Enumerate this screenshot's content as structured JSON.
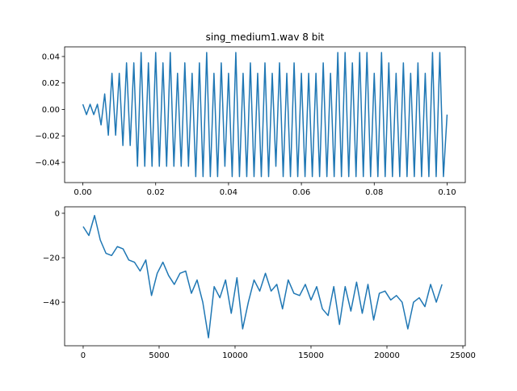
{
  "chart_data": [
    {
      "type": "line",
      "title": "sing_medium1.wav 8 bit",
      "xlim": [
        -0.005,
        0.105
      ],
      "ylim": [
        -0.0553,
        0.0473
      ],
      "xticks": [
        {
          "value": 0,
          "label": "0.00"
        },
        {
          "value": 0.02,
          "label": "0.02"
        },
        {
          "value": 0.04,
          "label": "0.04"
        },
        {
          "value": 0.06,
          "label": "0.06"
        },
        {
          "value": 0.08,
          "label": "0.08"
        },
        {
          "value": 0.1,
          "label": "0.10"
        }
      ],
      "yticks": [
        {
          "value": -0.04,
          "label": "−0.04"
        },
        {
          "value": -0.02,
          "label": "−0.02"
        },
        {
          "value": 0,
          "label": "0.00"
        },
        {
          "value": 0.02,
          "label": "0.02"
        },
        {
          "value": 0.04,
          "label": "0.04"
        }
      ],
      "x": [
        0,
        0.001,
        0.002,
        0.003,
        0.004,
        0.005,
        0.006,
        0.007,
        0.008,
        0.009,
        0.01,
        0.011,
        0.012,
        0.013,
        0.014,
        0.015,
        0.016,
        0.017,
        0.018,
        0.019,
        0.02,
        0.021,
        0.022,
        0.023,
        0.024,
        0.025,
        0.026,
        0.027,
        0.028,
        0.029,
        0.03,
        0.031,
        0.032,
        0.033,
        0.034,
        0.035,
        0.036,
        0.037,
        0.038,
        0.039,
        0.04,
        0.041,
        0.042,
        0.043,
        0.044,
        0.045,
        0.046,
        0.047,
        0.048,
        0.049,
        0.05,
        0.051,
        0.052,
        0.053,
        0.054,
        0.055,
        0.056,
        0.057,
        0.058,
        0.059,
        0.06,
        0.061,
        0.062,
        0.063,
        0.064,
        0.065,
        0.066,
        0.067,
        0.068,
        0.069,
        0.07,
        0.071,
        0.072,
        0.073,
        0.074,
        0.075,
        0.076,
        0.077,
        0.078,
        0.079,
        0.08,
        0.081,
        0.082,
        0.083,
        0.084,
        0.085,
        0.086,
        0.087,
        0.088,
        0.089,
        0.09,
        0.091,
        0.092,
        0.093,
        0.094,
        0.095,
        0.096,
        0.097,
        0.098,
        0.099,
        0.1
      ],
      "series": [
        {
          "color": "#1f77b4",
          "values": [
            0.0039,
            -0.0039,
            0.0039,
            -0.0039,
            0.0039,
            -0.0117,
            0.0117,
            -0.0195,
            0.0273,
            -0.0195,
            0.0273,
            -0.0273,
            0.0352,
            -0.0273,
            0.0352,
            -0.043,
            0.043,
            -0.043,
            0.0352,
            -0.043,
            0.043,
            -0.043,
            0.0352,
            -0.043,
            0.043,
            -0.043,
            0.0273,
            -0.043,
            0.0352,
            -0.043,
            0.0273,
            -0.0508,
            0.0352,
            -0.0508,
            0.043,
            -0.0508,
            0.0273,
            -0.0508,
            0.0352,
            -0.043,
            0.0273,
            -0.0508,
            0.043,
            -0.0508,
            0.0273,
            -0.0508,
            0.0352,
            -0.0508,
            0.0273,
            -0.0508,
            0.0352,
            -0.0508,
            0.0273,
            -0.043,
            0.0352,
            -0.0508,
            0.0273,
            -0.0508,
            0.0352,
            -0.0508,
            0.0273,
            -0.0508,
            0.0273,
            -0.0508,
            0.0273,
            -0.0508,
            0.0352,
            -0.0508,
            0.0273,
            -0.0508,
            0.043,
            -0.0508,
            0.043,
            -0.0508,
            0.0352,
            -0.0508,
            0.043,
            -0.0508,
            0.043,
            -0.0508,
            0.0273,
            -0.0508,
            0.043,
            -0.0508,
            0.0352,
            -0.0508,
            0.0273,
            -0.0508,
            0.0352,
            -0.0508,
            0.0273,
            -0.0508,
            0.0352,
            -0.0508,
            0.0273,
            -0.0508,
            0.043,
            -0.0508,
            0.043,
            -0.0508,
            -0.0039
          ]
        }
      ]
    },
    {
      "type": "line",
      "xlim": [
        -1221,
        25159
      ],
      "ylim": [
        -59.6,
        2.9
      ],
      "xticks": [
        0,
        5000,
        10000,
        15000,
        20000,
        25000
      ],
      "yticks": [
        {
          "value": -40,
          "label": "−40"
        },
        {
          "value": -20,
          "label": "−20"
        },
        0
      ],
      "x": [
        0,
        375,
        750,
        1125,
        1500,
        1875,
        2250,
        2625,
        3000,
        3375,
        3750,
        4125,
        4500,
        4875,
        5250,
        5625,
        6000,
        6375,
        6750,
        7125,
        7500,
        7875,
        8250,
        8625,
        9000,
        9375,
        9750,
        10125,
        10500,
        10875,
        11250,
        11625,
        12000,
        12375,
        12750,
        13125,
        13500,
        13875,
        14250,
        14625,
        15000,
        15375,
        15750,
        16125,
        16500,
        16875,
        17250,
        17625,
        18000,
        18375,
        18750,
        19125,
        19500,
        19875,
        20250,
        20625,
        21000,
        21375,
        21750,
        22125,
        22500,
        22875,
        23250,
        23625
      ],
      "series": [
        {
          "color": "#1f77b4",
          "values": [
            -6,
            -10,
            -1,
            -12,
            -18,
            -19,
            -15,
            -16,
            -21,
            -22,
            -26,
            -21,
            -37,
            -27,
            -22,
            -28,
            -32,
            -27,
            -26,
            -36,
            -30,
            -40,
            -56,
            -33,
            -38,
            -30,
            -45,
            -29,
            -52,
            -40,
            -30,
            -35,
            -27,
            -35,
            -32,
            -43,
            -30,
            -36,
            -37,
            -32,
            -39,
            -33,
            -43,
            -46,
            -33,
            -50,
            -33,
            -44,
            -31,
            -45,
            -32,
            -48,
            -36,
            -35,
            -39,
            -37,
            -40,
            -52,
            -40,
            -38,
            -42,
            -32,
            -40,
            -32
          ]
        }
      ]
    }
  ]
}
